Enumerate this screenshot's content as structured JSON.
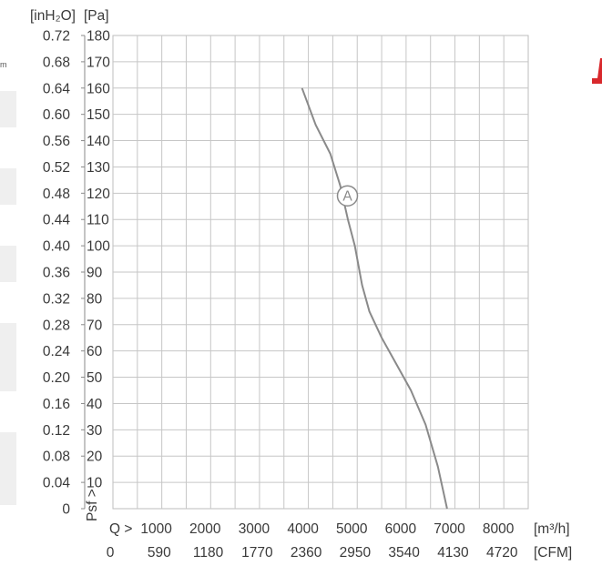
{
  "left_strip_fragment": "m",
  "chart_data": {
    "type": "line",
    "y_unit_left": "[inH₂O]",
    "y_unit_right": "[Pa]",
    "y_axis_name": "Psf >",
    "x_axis_prefix": "Q >",
    "x_unit_primary": "[m³/h]",
    "x_unit_secondary": "[CFM]",
    "y_inh2o_ticks": [
      "0.72",
      "0.68",
      "0.64",
      "0.60",
      "0.56",
      "0.52",
      "0.48",
      "0.44",
      "0.40",
      "0.36",
      "0.32",
      "0.28",
      "0.24",
      "0.20",
      "0.16",
      "0.12",
      "0.08",
      "0.04",
      "0"
    ],
    "y_pa_ticks": [
      "180",
      "170",
      "160",
      "150",
      "140",
      "130",
      "120",
      "110",
      "100",
      "90",
      "80",
      "70",
      "60",
      "50",
      "40",
      "30",
      "20",
      "10"
    ],
    "x_m3h_ticks": [
      "1000",
      "2000",
      "3000",
      "4000",
      "5000",
      "6000",
      "7000",
      "8000"
    ],
    "x_cfm_ticks": [
      "0",
      "590",
      "1180",
      "1770",
      "2360",
      "2950",
      "3540",
      "4130",
      "4720"
    ],
    "x_lim_m3h": [
      0,
      8500
    ],
    "y_lim_pa": [
      0,
      180
    ],
    "grid": true,
    "series": [
      {
        "label": "A",
        "color": "#8a8a8a",
        "points": [
          [
            3870,
            160
          ],
          [
            4150,
            146
          ],
          [
            4450,
            135
          ],
          [
            4650,
            123
          ],
          [
            4810,
            110
          ],
          [
            4950,
            100
          ],
          [
            5100,
            85
          ],
          [
            5250,
            75
          ],
          [
            5500,
            65
          ],
          [
            5800,
            55
          ],
          [
            6100,
            45
          ],
          [
            6400,
            32
          ],
          [
            6650,
            16
          ],
          [
            6840,
            0
          ]
        ],
        "label_at": [
          4800,
          119
        ]
      }
    ]
  }
}
